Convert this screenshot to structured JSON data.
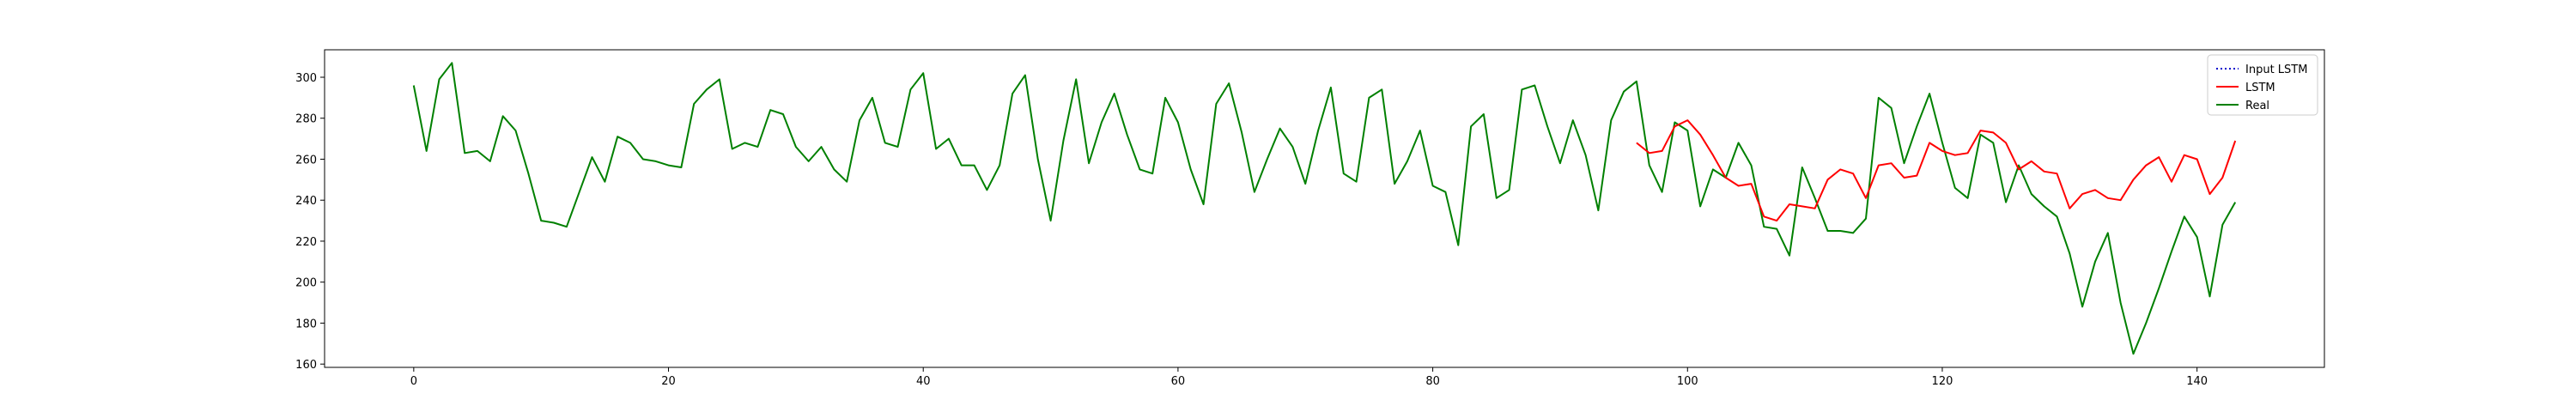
{
  "chart_data": {
    "type": "line",
    "title": "",
    "xlabel": "",
    "ylabel": "",
    "xlim": [
      -7,
      150
    ],
    "ylim": [
      158.4,
      313.4
    ],
    "xticks": [
      0,
      20,
      40,
      60,
      80,
      100,
      120,
      140
    ],
    "yticks": [
      160,
      180,
      200,
      220,
      240,
      260,
      280,
      300
    ],
    "grid": false,
    "legend_position": "upper right",
    "series": [
      {
        "name": "Input LSTM",
        "color": "#0000cc",
        "style": "dotted",
        "x": [],
        "values": []
      },
      {
        "name": "LSTM",
        "color": "#ff0000",
        "style": "solid",
        "x": [
          96,
          97,
          98,
          99,
          100,
          101,
          102,
          103,
          104,
          105,
          106,
          107,
          108,
          109,
          110,
          111,
          112,
          113,
          114,
          115,
          116,
          117,
          118,
          119,
          120,
          121,
          122,
          123,
          124,
          125,
          126,
          127,
          128,
          129,
          130,
          131,
          132,
          133,
          134,
          135,
          136,
          137,
          138,
          139,
          140,
          141,
          142,
          143
        ],
        "values": [
          268,
          263,
          264,
          276,
          279,
          272,
          262,
          251,
          247,
          248,
          232,
          230,
          238,
          237,
          236,
          250,
          255,
          253,
          241,
          257,
          258,
          251,
          252,
          268,
          264,
          262,
          263,
          274,
          273,
          268,
          255,
          259,
          254,
          253,
          236,
          243,
          245,
          241,
          240,
          250,
          257,
          261,
          249,
          262,
          260,
          243,
          251,
          269
        ]
      },
      {
        "name": "Real",
        "color": "#008000",
        "style": "solid",
        "x": [
          0,
          1,
          2,
          3,
          4,
          5,
          6,
          7,
          8,
          9,
          10,
          11,
          12,
          13,
          14,
          15,
          16,
          17,
          18,
          19,
          20,
          21,
          22,
          23,
          24,
          25,
          26,
          27,
          28,
          29,
          30,
          31,
          32,
          33,
          34,
          35,
          36,
          37,
          38,
          39,
          40,
          41,
          42,
          43,
          44,
          45,
          46,
          47,
          48,
          49,
          50,
          51,
          52,
          53,
          54,
          55,
          56,
          57,
          58,
          59,
          60,
          61,
          62,
          63,
          64,
          65,
          66,
          67,
          68,
          69,
          70,
          71,
          72,
          73,
          74,
          75,
          76,
          77,
          78,
          79,
          80,
          81,
          82,
          83,
          84,
          85,
          86,
          87,
          88,
          89,
          90,
          91,
          92,
          93,
          94,
          95,
          96,
          97,
          98,
          99,
          100,
          101,
          102,
          103,
          104,
          105,
          106,
          107,
          108,
          109,
          110,
          111,
          112,
          113,
          114,
          115,
          116,
          117,
          118,
          119,
          120,
          121,
          122,
          123,
          124,
          125,
          126,
          127,
          128,
          129,
          130,
          131,
          132,
          133,
          134,
          135,
          136,
          137,
          138,
          139,
          140,
          141,
          142,
          143
        ],
        "values": [
          296,
          264,
          299,
          307,
          263,
          264,
          259,
          281,
          274,
          253,
          230,
          229,
          227,
          244,
          261,
          249,
          271,
          268,
          260,
          259,
          257,
          256,
          287,
          294,
          299,
          265,
          268,
          266,
          284,
          282,
          266,
          259,
          266,
          255,
          249,
          279,
          290,
          268,
          266,
          294,
          302,
          265,
          270,
          257,
          257,
          245,
          257,
          292,
          301,
          260,
          230,
          269,
          299,
          258,
          278,
          292,
          272,
          255,
          253,
          290,
          278,
          255,
          238,
          287,
          297,
          273,
          244,
          260,
          275,
          266,
          248,
          274,
          295,
          253,
          249,
          290,
          294,
          248,
          259,
          274,
          247,
          244,
          218,
          276,
          282,
          241,
          245,
          294,
          296,
          276,
          258,
          279,
          262,
          235,
          279,
          293,
          298,
          257,
          244,
          278,
          274,
          237,
          255,
          251,
          268,
          257,
          227,
          226,
          213,
          256,
          241,
          225,
          225,
          224,
          231,
          290,
          285,
          258,
          276,
          292,
          268,
          246,
          241,
          272,
          268,
          239,
          257,
          243,
          237,
          232,
          214,
          188,
          210,
          224,
          190,
          165,
          180,
          197,
          215,
          232,
          222,
          193,
          228,
          239
        ]
      }
    ]
  },
  "colors": {
    "lstm": "#ff0000",
    "real": "#008000",
    "input_lstm": "#0000cc",
    "axes": "#000000",
    "legend_border": "#cccccc"
  }
}
